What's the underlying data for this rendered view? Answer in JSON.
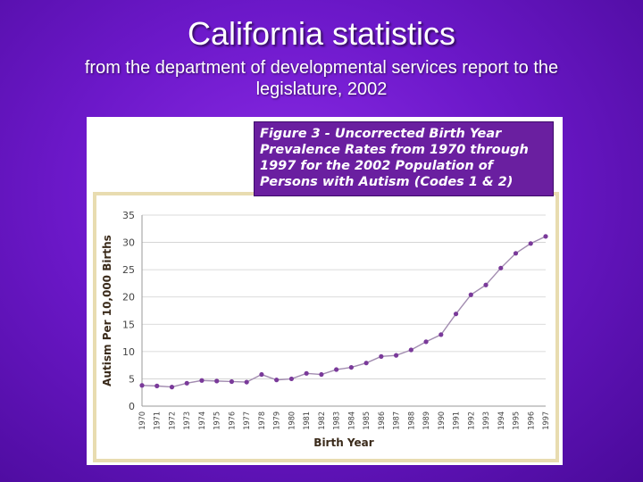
{
  "slide": {
    "title": "California statistics",
    "subtitle": "from the department of developmental services report to the legislature, 2002"
  },
  "colors": {
    "background": "#6c18c9",
    "caption_bg": "#6a1fa0",
    "frame": "#e8dcb0",
    "line": "#a28cb0",
    "marker": "#7a3a9a"
  },
  "chart_data": {
    "type": "line",
    "title": "Figure 3 - Uncorrected Birth Year Prevalence Rates from 1970 through 1997 for the 2002 Population of Persons with Autism (Codes 1 & 2)",
    "xlabel": "Birth Year",
    "ylabel": "Autism Per 10,000 Births",
    "ylim": [
      0,
      35
    ],
    "yticks": [
      0,
      5,
      10,
      15,
      20,
      25,
      30,
      35
    ],
    "grid": true,
    "categories": [
      "1970",
      "1971",
      "1972",
      "1973",
      "1974",
      "1975",
      "1976",
      "1977",
      "1978",
      "1979",
      "1980",
      "1981",
      "1982",
      "1983",
      "1984",
      "1985",
      "1986",
      "1987",
      "1988",
      "1989",
      "1990",
      "1991",
      "1992",
      "1993",
      "1994",
      "1995",
      "1996",
      "1997"
    ],
    "values": [
      3.8,
      3.7,
      3.5,
      4.2,
      4.7,
      4.6,
      4.5,
      4.4,
      5.8,
      4.8,
      5.0,
      6.0,
      5.8,
      6.7,
      7.1,
      7.9,
      9.1,
      9.3,
      10.3,
      11.8,
      13.1,
      16.9,
      20.4,
      22.2,
      25.3,
      28.0,
      29.8,
      31.1
    ]
  }
}
